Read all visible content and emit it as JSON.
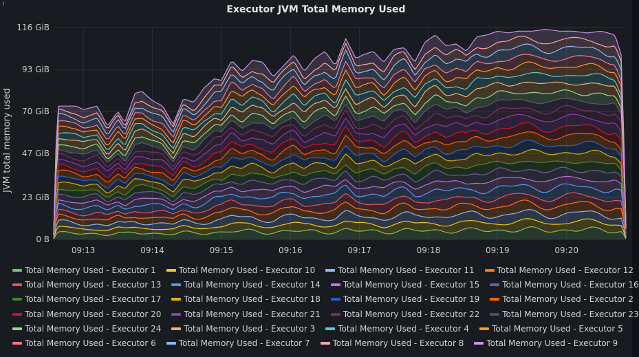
{
  "chart_data": {
    "type": "area",
    "stacked": true,
    "title": "Executor JVM Total Memory Used",
    "ylabel": "JVM total memory used",
    "xlabel": "",
    "y_ticks": [
      "0 B",
      "23 GiB",
      "47 GiB",
      "70 GiB",
      "93 GiB",
      "116 GiB"
    ],
    "y_tick_values": [
      0,
      23,
      47,
      70,
      93,
      116
    ],
    "ylim": [
      0,
      116
    ],
    "y_unit": "GiB",
    "x_ticks": [
      "09:13",
      "09:14",
      "09:15",
      "09:16",
      "09:17",
      "09:18",
      "09:19",
      "09:20"
    ],
    "x_tick_values": [
      13,
      14,
      15,
      16,
      17,
      18,
      19,
      20
    ],
    "xlim": [
      12.57,
      20.86
    ],
    "grid": true,
    "legend_position": "bottom",
    "total_envelope": {
      "x": [
        12.57,
        12.62,
        12.9,
        13.0,
        13.2,
        13.35,
        13.5,
        13.6,
        13.75,
        13.85,
        14.0,
        14.15,
        14.3,
        14.45,
        14.6,
        14.75,
        14.9,
        15.0,
        15.15,
        15.3,
        15.45,
        15.6,
        15.75,
        15.9,
        16.05,
        16.2,
        16.35,
        16.5,
        16.65,
        16.8,
        16.95,
        17.05,
        17.2,
        17.35,
        17.5,
        17.65,
        17.8,
        17.95,
        18.1,
        18.25,
        18.4,
        18.55,
        18.7,
        18.85,
        19.0,
        19.15,
        19.3,
        19.5,
        19.7,
        19.9,
        20.1,
        20.3,
        20.5,
        20.7,
        20.8,
        20.86
      ],
      "y": [
        3,
        73,
        73,
        71,
        73,
        62,
        70,
        64,
        80,
        81,
        76,
        73,
        63,
        77,
        75,
        83,
        88,
        87,
        98,
        92,
        98,
        97,
        89,
        95,
        101,
        92,
        99,
        103,
        95,
        110,
        99,
        101,
        103,
        97,
        104,
        105,
        97,
        108,
        112,
        106,
        107,
        103,
        111,
        112,
        114,
        113,
        114,
        114,
        115,
        114,
        114,
        113,
        114,
        112,
        100,
        8
      ]
    },
    "series": [
      {
        "name": "Total Memory Used - Executor 1",
        "color": "#73bf69",
        "share": 0.045
      },
      {
        "name": "Total Memory Used - Executor 10",
        "color": "#f2cc0c",
        "share": 0.038
      },
      {
        "name": "Total Memory Used - Executor 11",
        "color": "#8ab8ff",
        "share": 0.04
      },
      {
        "name": "Total Memory Used - Executor 12",
        "color": "#ff780a",
        "share": 0.042
      },
      {
        "name": "Total Memory Used - Executor 13",
        "color": "#f2495c",
        "share": 0.04
      },
      {
        "name": "Total Memory Used - Executor 14",
        "color": "#5794f2",
        "share": 0.045
      },
      {
        "name": "Total Memory Used - Executor 15",
        "color": "#b877d9",
        "share": 0.04
      },
      {
        "name": "Total Memory Used - Executor 16",
        "color": "#705da0",
        "share": 0.042
      },
      {
        "name": "Total Memory Used - Executor 17",
        "color": "#37872d",
        "share": 0.04
      },
      {
        "name": "Total Memory Used - Executor 18",
        "color": "#e0b400",
        "share": 0.045
      },
      {
        "name": "Total Memory Used - Executor 19",
        "color": "#1f60c4",
        "share": 0.04
      },
      {
        "name": "Total Memory Used - Executor 2",
        "color": "#fa6400",
        "share": 0.042
      },
      {
        "name": "Total Memory Used - Executor 20",
        "color": "#c4162a",
        "share": 0.04
      },
      {
        "name": "Total Memory Used - Executor 21",
        "color": "#8f3bb8",
        "share": 0.045
      },
      {
        "name": "Total Memory Used - Executor 22",
        "color": "#7e2c6a",
        "share": 0.04
      },
      {
        "name": "Total Memory Used - Executor 23",
        "color": "#584477",
        "share": 0.042
      },
      {
        "name": "Total Memory Used - Executor 24",
        "color": "#96d98d",
        "share": 0.04
      },
      {
        "name": "Total Memory Used - Executor 3",
        "color": "#ffb357",
        "share": 0.045
      },
      {
        "name": "Total Memory Used - Executor 4",
        "color": "#5ac8d8",
        "share": 0.04
      },
      {
        "name": "Total Memory Used - Executor 5",
        "color": "#ff9830",
        "share": 0.042
      },
      {
        "name": "Total Memory Used - Executor 6",
        "color": "#ff7383",
        "share": 0.04
      },
      {
        "name": "Total Memory Used - Executor 7",
        "color": "#8ab8ff",
        "share": 0.045
      },
      {
        "name": "Total Memory Used - Executor 8",
        "color": "#ffa6b0",
        "share": 0.04
      },
      {
        "name": "Total Memory Used - Executor 9",
        "color": "#ca95e5",
        "share": 0.045
      }
    ]
  },
  "panel": {
    "info_glyph": "i"
  }
}
